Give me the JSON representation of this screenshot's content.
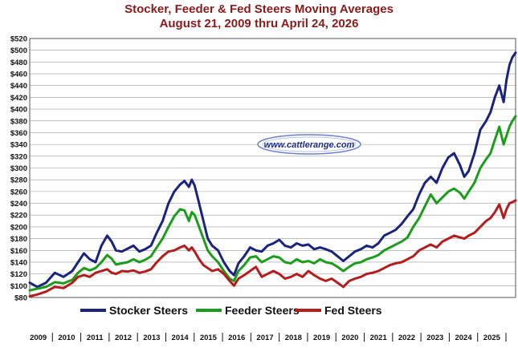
{
  "chart_data": {
    "type": "line",
    "title": "Stocker, Feeder & Fed Steers Moving Averages",
    "subtitle": "August 21, 2009 thru April 24, 2026",
    "watermark": "www.cattlerange.com",
    "ylim": [
      80,
      520
    ],
    "yticks": [
      "$80",
      "$100",
      "$120",
      "$140",
      "$160",
      "$180",
      "$200",
      "$220",
      "$240",
      "$260",
      "$280",
      "$300",
      "$320",
      "$340",
      "$360",
      "$380",
      "$400",
      "$420",
      "$440",
      "$460",
      "$480",
      "$500",
      "$520"
    ],
    "xlim": [
      2009.64,
      2026.31
    ],
    "year_labels": [
      "2009",
      "2010",
      "2011",
      "2012",
      "2013",
      "2014",
      "2015",
      "2016",
      "2017",
      "2018",
      "2019",
      "2020",
      "2021",
      "2022",
      "2023",
      "2024",
      "2025"
    ],
    "grid": true,
    "legend_position": "bottom",
    "series": [
      {
        "name": "Stocker Steers",
        "color": "#1a237e",
        "points": [
          [
            2009.64,
            105
          ],
          [
            2009.9,
            98
          ],
          [
            2010.2,
            105
          ],
          [
            2010.5,
            122
          ],
          [
            2010.8,
            115
          ],
          [
            2011.1,
            125
          ],
          [
            2011.3,
            140
          ],
          [
            2011.5,
            155
          ],
          [
            2011.7,
            145
          ],
          [
            2011.9,
            140
          ],
          [
            2012.1,
            168
          ],
          [
            2012.3,
            185
          ],
          [
            2012.45,
            175
          ],
          [
            2012.6,
            160
          ],
          [
            2012.8,
            158
          ],
          [
            2013.0,
            163
          ],
          [
            2013.2,
            168
          ],
          [
            2013.4,
            158
          ],
          [
            2013.6,
            162
          ],
          [
            2013.8,
            168
          ],
          [
            2014.0,
            190
          ],
          [
            2014.2,
            210
          ],
          [
            2014.4,
            240
          ],
          [
            2014.6,
            260
          ],
          [
            2014.8,
            272
          ],
          [
            2014.95,
            278
          ],
          [
            2015.1,
            268
          ],
          [
            2015.2,
            280
          ],
          [
            2015.3,
            270
          ],
          [
            2015.45,
            240
          ],
          [
            2015.6,
            210
          ],
          [
            2015.75,
            180
          ],
          [
            2015.9,
            168
          ],
          [
            2016.1,
            160
          ],
          [
            2016.3,
            140
          ],
          [
            2016.5,
            125
          ],
          [
            2016.65,
            118
          ],
          [
            2016.8,
            138
          ],
          [
            2017.0,
            150
          ],
          [
            2017.2,
            165
          ],
          [
            2017.4,
            160
          ],
          [
            2017.6,
            158
          ],
          [
            2017.8,
            168
          ],
          [
            2018.0,
            172
          ],
          [
            2018.2,
            178
          ],
          [
            2018.4,
            168
          ],
          [
            2018.6,
            165
          ],
          [
            2018.8,
            172
          ],
          [
            2019.0,
            168
          ],
          [
            2019.2,
            170
          ],
          [
            2019.4,
            162
          ],
          [
            2019.6,
            165
          ],
          [
            2019.8,
            162
          ],
          [
            2020.0,
            158
          ],
          [
            2020.2,
            150
          ],
          [
            2020.4,
            142
          ],
          [
            2020.6,
            150
          ],
          [
            2020.8,
            158
          ],
          [
            2021.0,
            162
          ],
          [
            2021.2,
            168
          ],
          [
            2021.4,
            165
          ],
          [
            2021.6,
            172
          ],
          [
            2021.8,
            185
          ],
          [
            2022.0,
            190
          ],
          [
            2022.2,
            195
          ],
          [
            2022.4,
            205
          ],
          [
            2022.6,
            218
          ],
          [
            2022.8,
            230
          ],
          [
            2023.0,
            255
          ],
          [
            2023.2,
            275
          ],
          [
            2023.4,
            285
          ],
          [
            2023.6,
            275
          ],
          [
            2023.8,
            300
          ],
          [
            2024.0,
            318
          ],
          [
            2024.2,
            325
          ],
          [
            2024.4,
            305
          ],
          [
            2024.55,
            285
          ],
          [
            2024.7,
            295
          ],
          [
            2024.9,
            325
          ],
          [
            2025.1,
            365
          ],
          [
            2025.3,
            380
          ],
          [
            2025.45,
            395
          ],
          [
            2025.6,
            420
          ],
          [
            2025.75,
            440
          ],
          [
            2025.9,
            412
          ],
          [
            2026.0,
            450
          ],
          [
            2026.1,
            475
          ],
          [
            2026.2,
            488
          ],
          [
            2026.31,
            496
          ]
        ]
      },
      {
        "name": "Feeder Steers",
        "color": "#1a9e1a",
        "points": [
          [
            2009.64,
            92
          ],
          [
            2009.9,
            95
          ],
          [
            2010.2,
            98
          ],
          [
            2010.5,
            106
          ],
          [
            2010.8,
            104
          ],
          [
            2011.1,
            110
          ],
          [
            2011.3,
            122
          ],
          [
            2011.5,
            130
          ],
          [
            2011.7,
            126
          ],
          [
            2011.9,
            130
          ],
          [
            2012.1,
            140
          ],
          [
            2012.3,
            152
          ],
          [
            2012.45,
            146
          ],
          [
            2012.6,
            136
          ],
          [
            2012.8,
            138
          ],
          [
            2013.0,
            140
          ],
          [
            2013.2,
            145
          ],
          [
            2013.4,
            140
          ],
          [
            2013.6,
            144
          ],
          [
            2013.8,
            150
          ],
          [
            2014.0,
            165
          ],
          [
            2014.2,
            180
          ],
          [
            2014.4,
            200
          ],
          [
            2014.6,
            218
          ],
          [
            2014.8,
            230
          ],
          [
            2014.95,
            228
          ],
          [
            2015.1,
            210
          ],
          [
            2015.2,
            225
          ],
          [
            2015.3,
            220
          ],
          [
            2015.45,
            200
          ],
          [
            2015.6,
            180
          ],
          [
            2015.75,
            160
          ],
          [
            2015.9,
            150
          ],
          [
            2016.1,
            140
          ],
          [
            2016.3,
            125
          ],
          [
            2016.5,
            112
          ],
          [
            2016.65,
            108
          ],
          [
            2016.8,
            125
          ],
          [
            2017.0,
            135
          ],
          [
            2017.2,
            148
          ],
          [
            2017.4,
            150
          ],
          [
            2017.6,
            140
          ],
          [
            2017.8,
            145
          ],
          [
            2018.0,
            150
          ],
          [
            2018.2,
            148
          ],
          [
            2018.4,
            140
          ],
          [
            2018.6,
            138
          ],
          [
            2018.8,
            145
          ],
          [
            2019.0,
            140
          ],
          [
            2019.2,
            142
          ],
          [
            2019.4,
            138
          ],
          [
            2019.6,
            145
          ],
          [
            2019.8,
            140
          ],
          [
            2020.0,
            138
          ],
          [
            2020.2,
            132
          ],
          [
            2020.4,
            125
          ],
          [
            2020.6,
            132
          ],
          [
            2020.8,
            138
          ],
          [
            2021.0,
            140
          ],
          [
            2021.2,
            145
          ],
          [
            2021.4,
            148
          ],
          [
            2021.6,
            152
          ],
          [
            2021.8,
            160
          ],
          [
            2022.0,
            165
          ],
          [
            2022.2,
            170
          ],
          [
            2022.4,
            175
          ],
          [
            2022.6,
            182
          ],
          [
            2022.8,
            200
          ],
          [
            2023.0,
            215
          ],
          [
            2023.2,
            235
          ],
          [
            2023.4,
            255
          ],
          [
            2023.6,
            240
          ],
          [
            2023.8,
            250
          ],
          [
            2024.0,
            260
          ],
          [
            2024.2,
            265
          ],
          [
            2024.4,
            258
          ],
          [
            2024.55,
            248
          ],
          [
            2024.7,
            260
          ],
          [
            2024.9,
            275
          ],
          [
            2025.1,
            300
          ],
          [
            2025.3,
            315
          ],
          [
            2025.45,
            325
          ],
          [
            2025.6,
            348
          ],
          [
            2025.75,
            370
          ],
          [
            2025.9,
            340
          ],
          [
            2026.0,
            355
          ],
          [
            2026.1,
            370
          ],
          [
            2026.2,
            380
          ],
          [
            2026.31,
            388
          ]
        ]
      },
      {
        "name": "Fed Steers",
        "color": "#b71c1c",
        "points": [
          [
            2009.64,
            82
          ],
          [
            2009.9,
            85
          ],
          [
            2010.2,
            90
          ],
          [
            2010.5,
            98
          ],
          [
            2010.8,
            96
          ],
          [
            2011.1,
            105
          ],
          [
            2011.3,
            115
          ],
          [
            2011.5,
            118
          ],
          [
            2011.7,
            115
          ],
          [
            2011.9,
            122
          ],
          [
            2012.1,
            125
          ],
          [
            2012.3,
            128
          ],
          [
            2012.45,
            122
          ],
          [
            2012.6,
            120
          ],
          [
            2012.8,
            125
          ],
          [
            2013.0,
            124
          ],
          [
            2013.2,
            126
          ],
          [
            2013.4,
            122
          ],
          [
            2013.6,
            124
          ],
          [
            2013.8,
            128
          ],
          [
            2014.0,
            140
          ],
          [
            2014.2,
            150
          ],
          [
            2014.4,
            158
          ],
          [
            2014.6,
            160
          ],
          [
            2014.8,
            165
          ],
          [
            2014.95,
            168
          ],
          [
            2015.1,
            160
          ],
          [
            2015.2,
            165
          ],
          [
            2015.3,
            158
          ],
          [
            2015.45,
            145
          ],
          [
            2015.6,
            135
          ],
          [
            2015.75,
            130
          ],
          [
            2015.9,
            125
          ],
          [
            2016.1,
            128
          ],
          [
            2016.3,
            120
          ],
          [
            2016.5,
            108
          ],
          [
            2016.65,
            100
          ],
          [
            2016.8,
            112
          ],
          [
            2017.0,
            118
          ],
          [
            2017.2,
            125
          ],
          [
            2017.4,
            132
          ],
          [
            2017.6,
            115
          ],
          [
            2017.8,
            120
          ],
          [
            2018.0,
            125
          ],
          [
            2018.2,
            120
          ],
          [
            2018.4,
            112
          ],
          [
            2018.6,
            115
          ],
          [
            2018.8,
            120
          ],
          [
            2019.0,
            115
          ],
          [
            2019.2,
            125
          ],
          [
            2019.4,
            118
          ],
          [
            2019.6,
            112
          ],
          [
            2019.8,
            108
          ],
          [
            2020.0,
            112
          ],
          [
            2020.2,
            105
          ],
          [
            2020.4,
            98
          ],
          [
            2020.6,
            108
          ],
          [
            2020.8,
            112
          ],
          [
            2021.0,
            115
          ],
          [
            2021.2,
            120
          ],
          [
            2021.4,
            122
          ],
          [
            2021.6,
            125
          ],
          [
            2021.8,
            130
          ],
          [
            2022.0,
            135
          ],
          [
            2022.2,
            138
          ],
          [
            2022.4,
            140
          ],
          [
            2022.6,
            145
          ],
          [
            2022.8,
            150
          ],
          [
            2023.0,
            160
          ],
          [
            2023.2,
            165
          ],
          [
            2023.4,
            170
          ],
          [
            2023.6,
            165
          ],
          [
            2023.8,
            175
          ],
          [
            2024.0,
            180
          ],
          [
            2024.2,
            185
          ],
          [
            2024.4,
            182
          ],
          [
            2024.55,
            180
          ],
          [
            2024.7,
            185
          ],
          [
            2024.9,
            190
          ],
          [
            2025.1,
            200
          ],
          [
            2025.3,
            210
          ],
          [
            2025.45,
            215
          ],
          [
            2025.6,
            225
          ],
          [
            2025.75,
            238
          ],
          [
            2025.9,
            215
          ],
          [
            2026.0,
            230
          ],
          [
            2026.1,
            240
          ],
          [
            2026.2,
            242
          ],
          [
            2026.31,
            245
          ]
        ]
      }
    ]
  }
}
